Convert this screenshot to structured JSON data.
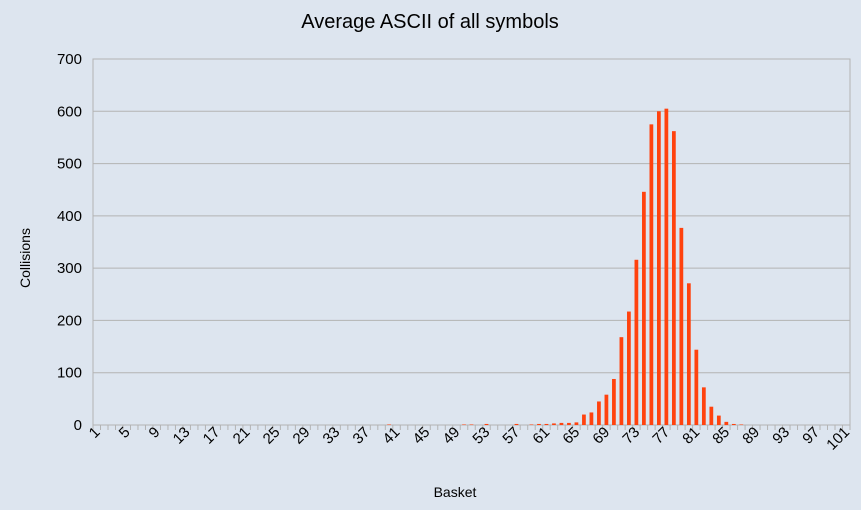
{
  "chart_data": {
    "type": "bar",
    "title": "Average ASCII of all symbols",
    "xlabel": "Basket",
    "ylabel": "Collisions",
    "ylim": [
      0,
      700
    ],
    "yticks": [
      0,
      100,
      200,
      300,
      400,
      500,
      600,
      700
    ],
    "grid": true,
    "legend": "none",
    "bar_color": "#ff420e",
    "categories": [
      1,
      2,
      3,
      4,
      5,
      6,
      7,
      8,
      9,
      10,
      11,
      12,
      13,
      14,
      15,
      16,
      17,
      18,
      19,
      20,
      21,
      22,
      23,
      24,
      25,
      26,
      27,
      28,
      29,
      30,
      31,
      32,
      33,
      34,
      35,
      36,
      37,
      38,
      39,
      40,
      41,
      42,
      43,
      44,
      45,
      46,
      47,
      48,
      49,
      50,
      51,
      52,
      53,
      54,
      55,
      56,
      57,
      58,
      59,
      60,
      61,
      62,
      63,
      64,
      65,
      66,
      67,
      68,
      69,
      70,
      71,
      72,
      73,
      74,
      75,
      76,
      77,
      78,
      79,
      80,
      81,
      82,
      83,
      84,
      85,
      86,
      87,
      88,
      89,
      90,
      91,
      92,
      93,
      94,
      95,
      96,
      97,
      98,
      99,
      100,
      101
    ],
    "tick_labels": [
      "1",
      "5",
      "9",
      "13",
      "17",
      "21",
      "25",
      "29",
      "33",
      "37",
      "41",
      "45",
      "49",
      "53",
      "57",
      "61",
      "65",
      "69",
      "73",
      "77",
      "81",
      "85",
      "89",
      "93",
      "97",
      "101"
    ],
    "values": [
      0,
      0,
      0,
      0,
      0,
      0,
      0,
      0,
      0,
      0,
      0,
      0,
      0,
      0,
      0,
      0,
      0,
      0,
      0,
      0,
      0,
      0,
      0,
      0,
      0,
      0,
      0,
      0,
      0,
      0,
      0,
      0,
      0,
      0,
      0,
      0,
      0,
      0,
      0,
      1,
      0,
      0,
      0,
      0,
      0,
      0,
      0,
      0,
      0,
      1,
      1,
      0,
      2,
      0,
      0,
      0,
      2,
      0,
      1,
      2,
      2,
      3,
      4,
      4,
      5,
      20,
      24,
      45,
      58,
      88,
      168,
      217,
      316,
      446,
      575,
      600,
      605,
      562,
      377,
      271,
      144,
      72,
      35,
      18,
      6,
      2,
      1,
      0,
      0,
      0,
      0,
      0,
      0,
      0,
      0,
      0,
      0,
      0,
      0,
      0,
      0
    ]
  }
}
